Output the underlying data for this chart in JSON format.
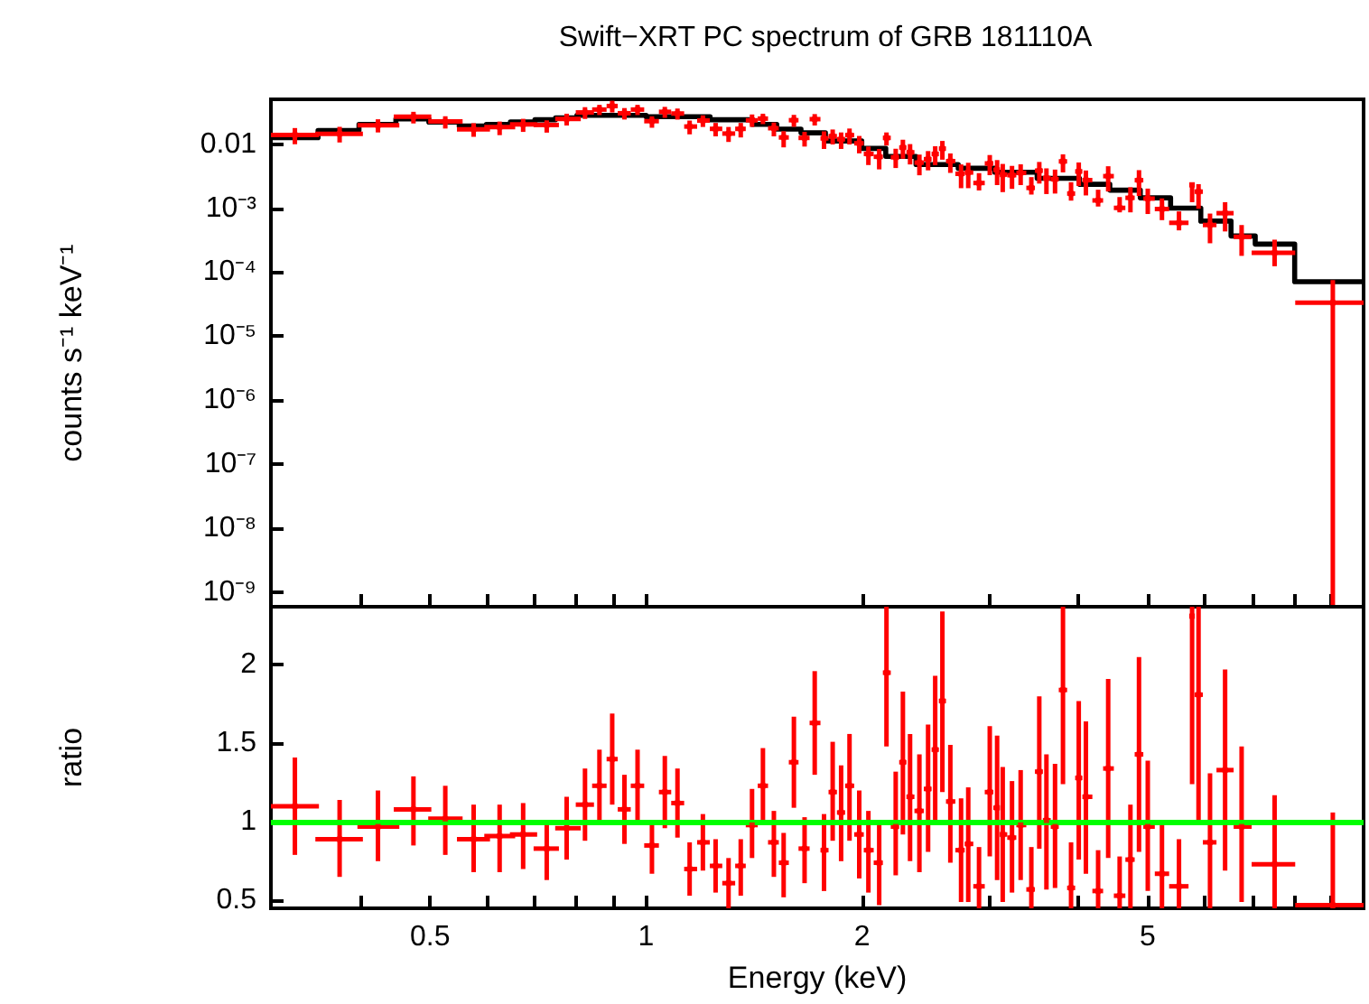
{
  "chart_data": [
    {
      "type": "scatter",
      "title": "Swift−XRT PC spectrum of GRB 181110A",
      "ylabel": "counts s⁻¹ keV⁻¹",
      "log": "xy",
      "tick_labels": "y",
      "xlim": [
        0.3,
        10
      ],
      "xticks": [
        {
          "value": 0.4,
          "label": null
        },
        0.5,
        {
          "value": 0.6,
          "label": null
        },
        {
          "value": 0.7,
          "label": null
        },
        {
          "value": 0.8,
          "label": null
        },
        {
          "value": 0.9,
          "label": null
        },
        1,
        2,
        {
          "value": 3,
          "label": null
        },
        {
          "value": 4,
          "label": null
        },
        5,
        {
          "value": 6,
          "label": null
        },
        {
          "value": 7,
          "label": null
        },
        {
          "value": 8,
          "label": null
        },
        {
          "value": 9,
          "label": null
        }
      ],
      "ylim": [
        6e-10,
        0.05
      ],
      "yticks": [
        0.01,
        {
          "value": 0.001,
          "label": "10⁻³"
        },
        {
          "value": 0.0001,
          "label": "10⁻⁴"
        },
        {
          "value": 1e-05,
          "label": "10⁻⁵"
        },
        {
          "value": 1e-06,
          "label": "10⁻⁶"
        },
        {
          "value": 1e-07,
          "label": "10⁻⁷"
        },
        {
          "value": 1e-08,
          "label": "10⁻⁸"
        },
        {
          "value": 1e-09,
          "label": "10⁻⁹"
        }
      ],
      "series": [
        {
          "color": "#ff0000",
          "x": [
            0.324,
            0.374,
            0.423,
            0.474,
            0.525,
            0.575,
            0.625,
            0.674,
            0.727,
            0.775,
            0.822,
            0.861,
            0.897,
            0.933,
            0.973,
            1.019,
            1.062,
            1.106,
            1.15,
            1.2,
            1.25,
            1.303,
            1.355,
            1.405,
            1.455,
            1.507,
            1.555,
            1.607,
            1.663,
            1.718,
            1.77,
            1.82,
            1.87,
            1.921,
            1.982,
            2.041,
            2.113,
            2.163,
            2.228,
            2.28,
            2.333,
            2.404,
            2.472,
            2.529,
            2.588,
            2.655,
            2.748,
            2.812,
            2.911,
            3.013,
            3.085,
            3.141,
            3.236,
            3.327,
            3.443,
            3.532,
            3.614,
            3.715,
            3.811,
            3.911,
            4.009,
            4.102,
            4.266,
            4.406,
            4.571,
            4.732,
            4.864,
            5.003,
            5.236,
            5.53,
            5.768,
            5.888,
            6.109,
            6.412,
            6.761,
            7.516,
            9.06
          ],
          "xerrors": [
            [
              0.3,
              0.35
            ],
            [
              0.346,
              0.403
            ],
            [
              0.396,
              0.453
            ],
            [
              0.445,
              0.502
            ],
            [
              0.497,
              0.555
            ],
            [
              0.545,
              0.606
            ],
            [
              0.595,
              0.657
            ],
            [
              0.646,
              0.705
            ],
            [
              0.697,
              0.756
            ],
            [
              0.747,
              0.811
            ],
            [
              0.798,
              0.846
            ],
            [
              0.841,
              0.881
            ],
            [
              0.881,
              0.913
            ],
            [
              0.913,
              0.952
            ],
            [
              0.952,
              0.994
            ],
            [
              0.994,
              1.042
            ],
            [
              1.042,
              1.084
            ],
            [
              1.084,
              1.13
            ],
            [
              1.13,
              1.178
            ],
            [
              1.178,
              1.227
            ],
            [
              1.227,
              1.277
            ],
            [
              1.277,
              1.331
            ],
            [
              1.331,
              1.377
            ],
            [
              1.377,
              1.431
            ],
            [
              1.431,
              1.479
            ],
            [
              1.479,
              1.531
            ],
            [
              1.531,
              1.581
            ],
            [
              1.581,
              1.631
            ],
            [
              1.631,
              1.69
            ],
            [
              1.69,
              1.75
            ],
            [
              1.75,
              1.796
            ],
            [
              1.796,
              1.845
            ],
            [
              1.845,
              1.894
            ],
            [
              1.894,
              1.95
            ],
            [
              1.95,
              2.011
            ],
            [
              2.011,
              2.076
            ],
            [
              2.076,
              2.138
            ],
            [
              2.138,
              2.193
            ],
            [
              2.193,
              2.253
            ],
            [
              2.253,
              2.306
            ],
            [
              2.306,
              2.366
            ],
            [
              2.366,
              2.438
            ],
            [
              2.438,
              2.5
            ],
            [
              2.5,
              2.559
            ],
            [
              2.559,
              2.618
            ],
            [
              2.618,
              2.698
            ],
            [
              2.698,
              2.78
            ],
            [
              2.78,
              2.858
            ],
            [
              2.858,
              2.965
            ],
            [
              2.965,
              3.048
            ],
            [
              3.048,
              3.112
            ],
            [
              3.112,
              3.187
            ],
            [
              3.187,
              3.281
            ],
            [
              3.281,
              3.388
            ],
            [
              3.388,
              3.483
            ],
            [
              3.483,
              3.573
            ],
            [
              3.573,
              3.664
            ],
            [
              3.664,
              3.76
            ],
            [
              3.76,
              3.862
            ],
            [
              3.862,
              3.963
            ],
            [
              3.963,
              4.056
            ],
            [
              4.056,
              4.188
            ],
            [
              4.188,
              4.335
            ],
            [
              4.335,
              4.487
            ],
            [
              4.487,
              4.656
            ],
            [
              4.656,
              4.797
            ],
            [
              4.797,
              4.932
            ],
            [
              4.932,
              5.117
            ],
            [
              5.117,
              5.358
            ],
            [
              5.358,
              5.702
            ],
            [
              5.715,
              5.815
            ],
            [
              5.815,
              5.97
            ],
            [
              5.97,
              6.237
            ],
            [
              6.237,
              6.59
            ],
            [
              6.59,
              6.982
            ],
            [
              6.982,
              8.03
            ],
            [
              8.03,
              10
            ]
          ],
          "values": [
            0.0139,
            0.0145,
            0.0197,
            0.0267,
            0.0225,
            0.017,
            0.0185,
            0.0203,
            0.0199,
            0.0247,
            0.0312,
            0.0346,
            0.0393,
            0.0303,
            0.0346,
            0.0228,
            0.0319,
            0.03,
            0.0188,
            0.0233,
            0.0173,
            0.0146,
            0.0173,
            0.0235,
            0.025,
            0.0177,
            0.0127,
            0.0236,
            0.0125,
            0.0245,
            0.0123,
            0.0133,
            0.0119,
            0.0138,
            0.0103,
            0.00703,
            0.00634,
            0.0125,
            0.00622,
            0.00885,
            0.00744,
            0.00514,
            0.00581,
            0.00701,
            0.0085,
            0.00542,
            0.00344,
            0.0036,
            0.00247,
            0.00499,
            0.00396,
            0.00334,
            0.00327,
            0.00356,
            0.00207,
            0.00385,
            0.00295,
            0.00283,
            0.00537,
            0.00169,
            0.00374,
            0.00274,
            0.00132,
            0.00316,
            0.00101,
            0.00145,
            0.00273,
            0.00141,
            0.00097,
            0.00059,
            0.00231,
            0.00181,
            0.000546,
            0.000835,
            0.000357,
            0.000201,
            3.34e-05
          ],
          "errors": [
            [
              0.00995,
              0.0178
            ],
            [
              0.0106,
              0.0186
            ],
            [
              0.0152,
              0.0244
            ],
            [
              0.021,
              0.0319
            ],
            [
              0.0175,
              0.0272
            ],
            [
              0.013,
              0.0212
            ],
            [
              0.0138,
              0.0225
            ],
            [
              0.0155,
              0.0248
            ],
            [
              0.0151,
              0.0235
            ],
            [
              0.0195,
              0.0298
            ],
            [
              0.0247,
              0.0377
            ],
            [
              0.0284,
              0.041
            ],
            [
              0.0312,
              0.0475
            ],
            [
              0.0242,
              0.0365
            ],
            [
              0.0284,
              0.041
            ],
            [
              0.018,
              0.0271
            ],
            [
              0.0257,
              0.0381
            ],
            [
              0.0241,
              0.0359
            ],
            [
              0.0142,
              0.0233
            ],
            [
              0.0185,
              0.0281
            ],
            [
              0.0132,
              0.0214
            ],
            [
              0.0108,
              0.0185
            ],
            [
              0.0127,
              0.0214
            ],
            [
              0.0185,
              0.029
            ],
            [
              0.0205,
              0.0298
            ],
            [
              0.0132,
              0.0217
            ],
            [
              0.00889,
              0.0159
            ],
            [
              0.0186,
              0.0286
            ],
            [
              0.00915,
              0.0155
            ],
            [
              0.0195,
              0.0294
            ],
            [
              0.0084,
              0.0158
            ],
            [
              0.00986,
              0.0169
            ],
            [
              0.0084,
              0.0152
            ],
            [
              0.00986,
              0.0175
            ],
            [
              0.00717,
              0.0134
            ],
            [
              0.00471,
              0.00917
            ],
            [
              0.00403,
              0.0084
            ],
            [
              0.00949,
              0.0152
            ],
            [
              0.00423,
              0.00846
            ],
            [
              0.0059,
              0.0117
            ],
            [
              0.00481,
              0.01
            ],
            [
              0.00326,
              0.00686
            ],
            [
              0.00389,
              0.00778
            ],
            [
              0.0047,
              0.00926
            ],
            [
              0.00571,
              0.0112
            ],
            [
              0.00355,
              0.00715
            ],
            [
              0.00205,
              0.00482
            ],
            [
              0.00205,
              0.00511
            ],
            [
              0.00189,
              0.00352
            ],
            [
              0.00327,
              0.00675
            ],
            [
              0.00229,
              0.00563
            ],
            [
              0.00178,
              0.0049
            ],
            [
              0.002,
              0.00457
            ],
            [
              0.00229,
              0.00483
            ],
            [
              0.00163,
              0.00305
            ],
            [
              0.00242,
              0.00526
            ],
            [
              0.00166,
              0.00418
            ],
            [
              0.00169,
              0.004
            ],
            [
              0.00362,
              0.00692
            ],
            [
              0.00131,
              0.00254
            ],
            [
              0.00222,
              0.00517
            ],
            [
              0.00158,
              0.00387
            ],
            [
              0.00106,
              0.00194
            ],
            [
              0.00182,
              0.00451
            ],
            [
              0.00086,
              0.00149
            ],
            [
              0.00086,
              0.00212
            ],
            [
              0.00155,
              0.00392
            ],
            [
              0.00081,
              0.00202
            ],
            [
              0.00065,
              0.00142
            ],
            [
              0.00045,
              0.00089
            ],
            [
              0.00124,
              0.00237
            ],
            [
              0.00098,
              0.00237
            ],
            [
              0.000283,
              0.000823
            ],
            [
              0.000433,
              0.00124
            ],
            [
              0.00018,
              0.000545
            ],
            [
              0.000124,
              0.000322
            ],
            [
              6e-10,
              7.53e-05
            ]
          ]
        },
        {
          "type": "step",
          "color": "#000000",
          "x": [
            0.3,
            0.349,
            0.398,
            0.448,
            0.498,
            0.549,
            0.599,
            0.647,
            0.7,
            0.748,
            0.801,
            1.0,
            1.228,
            1.408,
            1.521,
            1.644,
            1.778,
            1.998,
            2.158,
            2.378,
            2.723,
            3.062,
            3.508,
            4.018,
            4.429,
            4.884,
            5.383,
            5.931,
            6.535,
            7.063,
            8.016,
            10
          ],
          "values": [
            0.0126,
            0.0163,
            0.0203,
            0.0247,
            0.0221,
            0.0191,
            0.0203,
            0.0221,
            0.024,
            0.0257,
            0.0281,
            0.0268,
            0.024,
            0.0203,
            0.0171,
            0.015,
            0.0112,
            0.00857,
            0.00641,
            0.0048,
            0.00419,
            0.00363,
            0.00292,
            0.00236,
            0.00191,
            0.00145,
            0.001,
            0.000628,
            0.000368,
            0.000275,
            7.1e-05,
            7.1e-05
          ]
        }
      ]
    },
    {
      "type": "scatter",
      "xlabel": "Energy (keV)",
      "ylabel": "ratio",
      "log": "x",
      "xlim": [
        0.3,
        10
      ],
      "xticks": [
        {
          "value": 0.4,
          "label": null
        },
        0.5,
        {
          "value": 0.6,
          "label": null
        },
        {
          "value": 0.7,
          "label": null
        },
        {
          "value": 0.8,
          "label": null
        },
        {
          "value": 0.9,
          "label": null
        },
        1,
        2,
        {
          "value": 3,
          "label": null
        },
        {
          "value": 4,
          "label": null
        },
        5,
        {
          "value": 6,
          "label": null
        },
        {
          "value": 7,
          "label": null
        },
        {
          "value": 8,
          "label": null
        },
        {
          "value": 9,
          "label": null
        }
      ],
      "ylim": [
        0.45,
        2.37
      ],
      "yticks": [
        0.5,
        1,
        1.5,
        2
      ],
      "ref_lines": [
        {
          "axis": "y",
          "value": 1,
          "color": "#00ff00"
        }
      ],
      "series": [
        {
          "color": "#ff0000",
          "x": [
            0.324,
            0.374,
            0.423,
            0.474,
            0.525,
            0.575,
            0.625,
            0.674,
            0.727,
            0.775,
            0.822,
            0.861,
            0.897,
            0.933,
            0.973,
            1.019,
            1.062,
            1.106,
            1.15,
            1.2,
            1.25,
            1.303,
            1.355,
            1.405,
            1.455,
            1.507,
            1.555,
            1.607,
            1.663,
            1.718,
            1.77,
            1.82,
            1.87,
            1.921,
            1.982,
            2.041,
            2.113,
            2.163,
            2.228,
            2.28,
            2.333,
            2.404,
            2.472,
            2.529,
            2.588,
            2.655,
            2.748,
            2.812,
            2.911,
            3.013,
            3.085,
            3.141,
            3.236,
            3.327,
            3.443,
            3.532,
            3.614,
            3.715,
            3.811,
            3.911,
            4.009,
            4.102,
            4.266,
            4.406,
            4.571,
            4.732,
            4.864,
            5.003,
            5.236,
            5.53,
            5.768,
            5.888,
            6.109,
            6.412,
            6.761,
            7.516,
            9.06
          ],
          "xerrors": [
            [
              0.3,
              0.35
            ],
            [
              0.346,
              0.403
            ],
            [
              0.396,
              0.453
            ],
            [
              0.445,
              0.502
            ],
            [
              0.497,
              0.555
            ],
            [
              0.545,
              0.606
            ],
            [
              0.595,
              0.657
            ],
            [
              0.646,
              0.705
            ],
            [
              0.697,
              0.756
            ],
            [
              0.747,
              0.811
            ],
            [
              0.798,
              0.846
            ],
            [
              0.841,
              0.881
            ],
            [
              0.881,
              0.913
            ],
            [
              0.913,
              0.952
            ],
            [
              0.952,
              0.994
            ],
            [
              0.994,
              1.042
            ],
            [
              1.042,
              1.084
            ],
            [
              1.084,
              1.13
            ],
            [
              1.13,
              1.178
            ],
            [
              1.178,
              1.227
            ],
            [
              1.227,
              1.277
            ],
            [
              1.277,
              1.331
            ],
            [
              1.331,
              1.377
            ],
            [
              1.377,
              1.431
            ],
            [
              1.431,
              1.479
            ],
            [
              1.479,
              1.531
            ],
            [
              1.531,
              1.581
            ],
            [
              1.581,
              1.631
            ],
            [
              1.631,
              1.69
            ],
            [
              1.69,
              1.75
            ],
            [
              1.75,
              1.796
            ],
            [
              1.796,
              1.845
            ],
            [
              1.845,
              1.894
            ],
            [
              1.894,
              1.95
            ],
            [
              1.95,
              2.011
            ],
            [
              2.011,
              2.076
            ],
            [
              2.076,
              2.138
            ],
            [
              2.138,
              2.193
            ],
            [
              2.193,
              2.253
            ],
            [
              2.253,
              2.306
            ],
            [
              2.306,
              2.366
            ],
            [
              2.366,
              2.438
            ],
            [
              2.438,
              2.5
            ],
            [
              2.5,
              2.559
            ],
            [
              2.559,
              2.618
            ],
            [
              2.618,
              2.698
            ],
            [
              2.698,
              2.78
            ],
            [
              2.78,
              2.858
            ],
            [
              2.858,
              2.965
            ],
            [
              2.965,
              3.048
            ],
            [
              3.048,
              3.112
            ],
            [
              3.112,
              3.187
            ],
            [
              3.187,
              3.281
            ],
            [
              3.281,
              3.388
            ],
            [
              3.388,
              3.483
            ],
            [
              3.483,
              3.573
            ],
            [
              3.573,
              3.664
            ],
            [
              3.664,
              3.76
            ],
            [
              3.76,
              3.862
            ],
            [
              3.862,
              3.963
            ],
            [
              3.963,
              4.056
            ],
            [
              4.056,
              4.188
            ],
            [
              4.188,
              4.335
            ],
            [
              4.335,
              4.487
            ],
            [
              4.487,
              4.656
            ],
            [
              4.656,
              4.797
            ],
            [
              4.797,
              4.932
            ],
            [
              4.932,
              5.117
            ],
            [
              5.117,
              5.358
            ],
            [
              5.358,
              5.702
            ],
            [
              5.715,
              5.815
            ],
            [
              5.815,
              5.97
            ],
            [
              5.97,
              6.237
            ],
            [
              6.237,
              6.59
            ],
            [
              6.59,
              6.982
            ],
            [
              6.982,
              8.03
            ],
            [
              8.03,
              10
            ]
          ],
          "values": [
            1.1,
            0.89,
            0.97,
            1.08,
            1.02,
            0.89,
            0.91,
            0.92,
            0.83,
            0.96,
            1.11,
            1.23,
            1.4,
            1.08,
            1.23,
            0.85,
            1.19,
            1.12,
            0.7,
            0.87,
            0.72,
            0.61,
            0.72,
            0.98,
            1.23,
            0.87,
            0.74,
            1.38,
            0.83,
            1.63,
            0.82,
            1.19,
            1.06,
            1.23,
            0.92,
            0.82,
            0.74,
            1.95,
            0.97,
            1.38,
            1.16,
            1.07,
            1.21,
            1.46,
            1.77,
            1.13,
            0.82,
            0.86,
            0.59,
            1.19,
            1.09,
            0.92,
            0.9,
            0.98,
            0.57,
            1.32,
            1.01,
            0.97,
            1.84,
            0.58,
            1.28,
            1.16,
            0.56,
            1.34,
            0.53,
            0.76,
            1.43,
            0.97,
            0.67,
            0.59,
            2.31,
            1.81,
            0.87,
            1.33,
            0.97,
            0.73,
            0.47
          ],
          "errors": [
            [
              0.79,
              1.41
            ],
            [
              0.65,
              1.14
            ],
            [
              0.75,
              1.2
            ],
            [
              0.85,
              1.29
            ],
            [
              0.79,
              1.23
            ],
            [
              0.68,
              1.11
            ],
            [
              0.68,
              1.11
            ],
            [
              0.7,
              1.12
            ],
            [
              0.63,
              0.98
            ],
            [
              0.76,
              1.16
            ],
            [
              0.88,
              1.34
            ],
            [
              1.01,
              1.46
            ],
            [
              1.11,
              1.69
            ],
            [
              0.86,
              1.3
            ],
            [
              1.01,
              1.46
            ],
            [
              0.67,
              1.01
            ],
            [
              0.96,
              1.42
            ],
            [
              0.9,
              1.34
            ],
            [
              0.53,
              0.87
            ],
            [
              0.69,
              1.05
            ],
            [
              0.55,
              0.89
            ],
            [
              0.45,
              0.77
            ],
            [
              0.53,
              0.89
            ],
            [
              0.77,
              1.21
            ],
            [
              1.01,
              1.47
            ],
            [
              0.65,
              1.07
            ],
            [
              0.52,
              0.93
            ],
            [
              1.09,
              1.67
            ],
            [
              0.61,
              1.03
            ],
            [
              1.3,
              1.96
            ],
            [
              0.56,
              1.05
            ],
            [
              0.88,
              1.51
            ],
            [
              0.75,
              1.36
            ],
            [
              0.88,
              1.56
            ],
            [
              0.64,
              1.2
            ],
            [
              0.55,
              1.07
            ],
            [
              0.47,
              0.98
            ],
            [
              1.48,
              2.37
            ],
            [
              0.66,
              1.32
            ],
            [
              0.92,
              1.83
            ],
            [
              0.75,
              1.56
            ],
            [
              0.68,
              1.43
            ],
            [
              0.81,
              1.62
            ],
            [
              0.98,
              1.93
            ],
            [
              1.19,
              2.34
            ],
            [
              0.74,
              1.49
            ],
            [
              0.49,
              1.15
            ],
            [
              0.49,
              1.22
            ],
            [
              0.45,
              0.84
            ],
            [
              0.78,
              1.61
            ],
            [
              0.63,
              1.55
            ],
            [
              0.49,
              1.35
            ],
            [
              0.55,
              1.26
            ],
            [
              0.63,
              1.33
            ],
            [
              0.45,
              0.84
            ],
            [
              0.83,
              1.8
            ],
            [
              0.57,
              1.43
            ],
            [
              0.58,
              1.37
            ],
            [
              1.24,
              2.37
            ],
            [
              0.45,
              0.87
            ],
            [
              0.76,
              1.77
            ],
            [
              0.67,
              1.64
            ],
            [
              0.45,
              0.82
            ],
            [
              0.77,
              1.91
            ],
            [
              0.45,
              0.78
            ],
            [
              0.45,
              1.11
            ],
            [
              0.81,
              2.05
            ],
            [
              0.56,
              1.39
            ],
            [
              0.45,
              0.98
            ],
            [
              0.45,
              0.89
            ],
            [
              1.24,
              2.37
            ],
            [
              0.98,
              2.37
            ],
            [
              0.45,
              1.31
            ],
            [
              0.69,
              1.97
            ],
            [
              0.49,
              1.48
            ],
            [
              0.45,
              1.17
            ],
            [
              0.45,
              1.06
            ]
          ]
        }
      ]
    }
  ]
}
